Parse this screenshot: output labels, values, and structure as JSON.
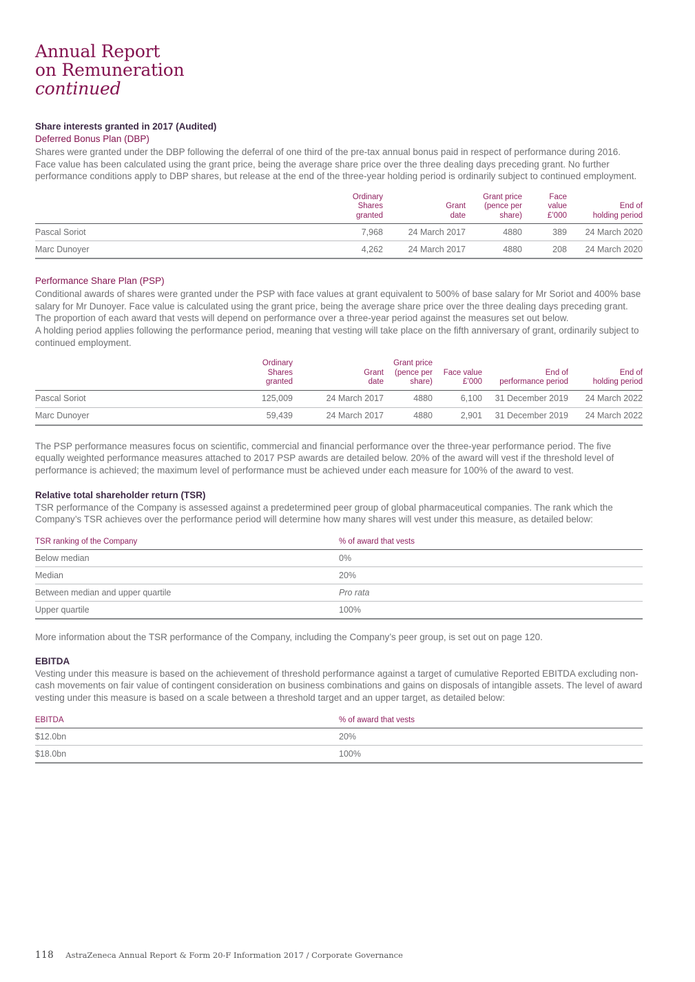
{
  "colors": {
    "mulberry": "#83134F",
    "table-header": "#8E1E5E",
    "heading-dark": "#3E2A46",
    "body-gray": "#6D6E71",
    "rule-dark": "#55565A",
    "rule-light": "#BDBEC1",
    "rule-bottom": "#8A8C8E",
    "footer-gray": "#4B4B4D"
  },
  "title": {
    "line1": "Annual Report",
    "line2": "on Remuneration",
    "continued": "continued"
  },
  "share_interests": {
    "heading": "Share interests granted in 2017 (Audited)"
  },
  "dbp": {
    "heading": "Deferred Bonus Plan (DBP)",
    "body": "Shares were granted under the DBP following the deferral of one third of the pre-tax annual bonus paid in respect of performance during 2016. Face value has been calculated using the grant price, being the average share price over the three dealing days preceding grant. No further performance conditions apply to DBP shares, but release at the end of the three-year holding period is ordinarily subject to continued employment.",
    "table": {
      "col_headers": [
        "",
        "Ordinary\nShares\ngranted",
        "Grant\ndate",
        "Grant price\n(pence per\nshare)",
        "Face value\n£’000",
        "End of\nholding period"
      ],
      "rows": [
        [
          "Pascal Soriot",
          "7,968",
          "24 March 2017",
          "4880",
          "389",
          "24 March 2020"
        ],
        [
          "Marc Dunoyer",
          "4,262",
          "24 March 2017",
          "4880",
          "208",
          "24 March 2020"
        ]
      ]
    }
  },
  "psp": {
    "heading": "Performance Share Plan (PSP)",
    "body": "Conditional awards of shares were granted under the PSP with face values at grant equivalent to 500% of base salary for Mr Soriot and 400% base salary for Mr Dunoyer. Face value is calculated using the grant price, being the average share price over the three dealing days preceding grant. The proportion of each award that vests will depend on performance over a three-year period against the measures set out below.\nA holding period applies following the performance period, meaning that vesting will take place on the fifth anniversary of grant, ordinarily subject to continued employment.",
    "table": {
      "col_headers": [
        "",
        "Ordinary\nShares\ngranted",
        "Grant\ndate",
        "Grant price\n(pence per\nshare)",
        "Face value\n£’000",
        "End of\nperformance period",
        "End of\nholding period"
      ],
      "rows": [
        [
          "Pascal Soriot",
          "125,009",
          "24 March 2017",
          "4880",
          "6,100",
          "31 December 2019",
          "24 March 2022"
        ],
        [
          "Marc Dunoyer",
          "59,439",
          "24 March 2017",
          "4880",
          "2,901",
          "31 December 2019",
          "24 March 2022"
        ]
      ]
    },
    "after_body": "The PSP performance measures focus on scientific, commercial and financial performance over the three-year performance period. The five equally weighted performance measures attached to 2017 PSP awards are detailed below. 20% of the award will vest if the threshold level of performance is achieved; the maximum level of performance must be achieved under each measure for 100% of the award to vest."
  },
  "tsr": {
    "heading": "Relative total shareholder return (TSR)",
    "body": "TSR performance of the Company is assessed against a predetermined peer group of global pharmaceutical companies. The rank which the Company’s TSR achieves over the performance period will determine how many shares will vest under this measure, as detailed below:",
    "table": {
      "col_headers": [
        "TSR ranking of the Company",
        "% of award that vests"
      ],
      "rows": [
        [
          "Below median",
          "0%"
        ],
        [
          "Median",
          "20%"
        ],
        [
          "Between median and upper quartile",
          {
            "text": "Pro rata",
            "italic": true
          }
        ],
        [
          "Upper quartile",
          "100%"
        ]
      ]
    },
    "more_info": "More information about the TSR performance of the Company, including the Company’s peer group, is set out on page 120."
  },
  "ebitda": {
    "heading": "EBITDA",
    "body": "Vesting under this measure is based on the achievement of threshold performance against a target of cumulative Reported EBITDA excluding non-cash movements on fair value of contingent consideration on business combinations and gains on disposals of intangible assets. The level of award vesting under this measure is based on a scale between a threshold target and an upper target, as detailed below:",
    "table": {
      "col_headers": [
        "EBITDA",
        "% of award that vests"
      ],
      "rows": [
        [
          "$12.0bn",
          "20%"
        ],
        [
          "$18.0bn",
          "100%"
        ]
      ]
    }
  },
  "footer": {
    "page_number": "118",
    "text": "AstraZeneca Annual Report & Form 20-F Information 2017 / Corporate Governance"
  }
}
